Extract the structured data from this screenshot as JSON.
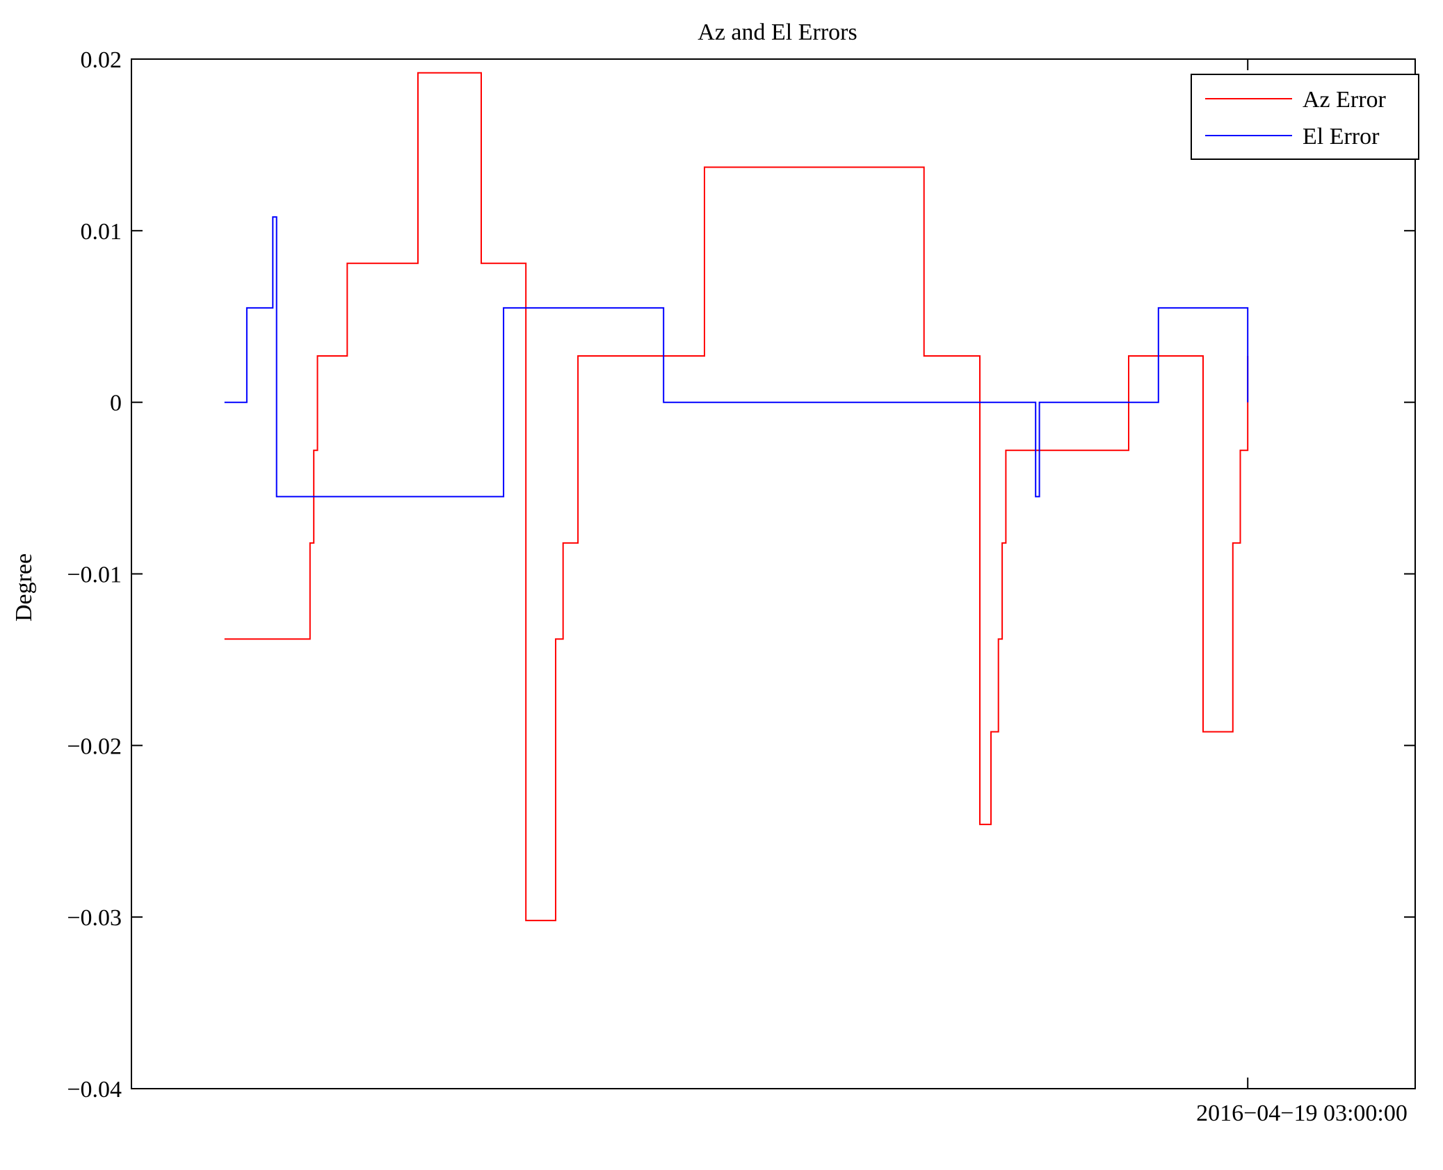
{
  "chart_data": {
    "type": "line",
    "title": "Az and El Errors",
    "xlabel": "",
    "ylabel": "Degree",
    "ylim": [
      -0.04,
      0.02
    ],
    "yticks": [
      0.02,
      0.01,
      0,
      -0.01,
      -0.02,
      -0.03,
      -0.04
    ],
    "ytick_labels": [
      "0.02",
      "0.01",
      "0",
      "−0.01",
      "−0.02",
      "−0.03",
      "−0.04"
    ],
    "x_tick_label": "2016−04−19 03:00:00",
    "x_tick_time": "2016-04-19 03:00:00",
    "xlim": [
      "2016-04-19 02:55:00",
      "2016-04-19 03:00:45"
    ],
    "grid": false,
    "legend_position": "top-right",
    "series": [
      {
        "name": "Az Error",
        "color": "#ff0000",
        "step": true,
        "x": [
          "2016-04-19 02:55:25",
          "2016-04-19 02:55:48",
          "2016-04-19 02:55:49",
          "2016-04-19 02:55:50",
          "2016-04-19 02:55:58",
          "2016-04-19 02:56:16",
          "2016-04-19 02:56:17",
          "2016-04-19 02:56:34",
          "2016-04-19 02:56:46",
          "2016-04-19 02:56:54",
          "2016-04-19 02:56:56",
          "2016-04-19 02:57:00",
          "2016-04-19 02:57:00",
          "2016-04-19 02:57:33",
          "2016-04-19 02:57:34",
          "2016-04-19 02:58:33",
          "2016-04-19 02:58:48",
          "2016-04-19 02:58:51",
          "2016-04-19 02:58:53",
          "2016-04-19 02:58:54",
          "2016-04-19 02:58:55",
          "2016-04-19 02:59:28",
          "2016-04-19 02:59:48",
          "2016-04-19 02:59:56",
          "2016-04-19 02:59:58",
          "2016-04-19 03:00:00"
        ],
        "y": [
          -0.0138,
          -0.0082,
          -0.0028,
          0.0027,
          0.0081,
          0.0081,
          0.0192,
          0.0081,
          -0.0302,
          -0.0138,
          -0.0082,
          -0.0028,
          0.0027,
          0.0027,
          0.0137,
          0.0027,
          -0.0246,
          -0.0192,
          -0.0138,
          -0.0082,
          -0.0028,
          0.0027,
          -0.0192,
          -0.0082,
          -0.0028,
          0.0027
        ]
      },
      {
        "name": "El Error",
        "color": "#0000ff",
        "step": true,
        "x": [
          "2016-04-19 02:55:25",
          "2016-04-19 02:55:31",
          "2016-04-19 02:55:38",
          "2016-04-19 02:55:39",
          "2016-04-19 02:56:40",
          "2016-04-19 02:57:23",
          "2016-04-19 02:59:03",
          "2016-04-19 02:59:04",
          "2016-04-19 02:59:36",
          "2016-04-19 03:00:00"
        ],
        "y": [
          0,
          0.0055,
          0.0108,
          -0.0055,
          0.0055,
          0,
          -0.0055,
          0,
          0.0055,
          0
        ]
      }
    ]
  }
}
